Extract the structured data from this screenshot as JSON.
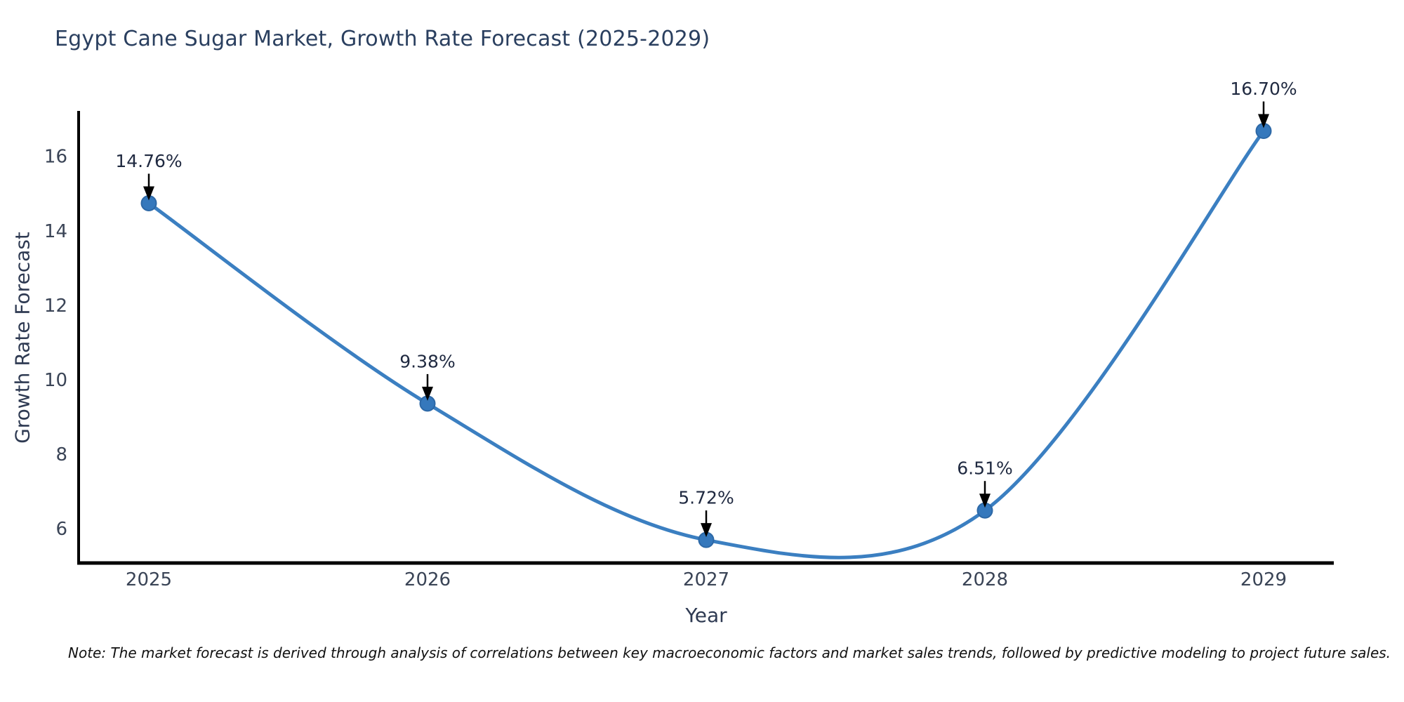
{
  "chart_data": {
    "type": "line",
    "title": "Egypt Cane Sugar Market, Growth Rate Forecast (2025-2029)",
    "xlabel": "Year",
    "ylabel": "Growth Rate Forecast",
    "categories": [
      "2025",
      "2026",
      "2027",
      "2028",
      "2029"
    ],
    "series": [
      {
        "name": "Growth Rate Forecast",
        "values": [
          14.76,
          9.38,
          5.72,
          6.51,
          16.7
        ],
        "point_labels": [
          "14.76%",
          "9.38%",
          "5.72%",
          "6.51%",
          "16.70%"
        ]
      }
    ],
    "yticks": [
      6,
      8,
      10,
      12,
      14,
      16
    ],
    "ylim": [
      5.1,
      17.2
    ],
    "grid": false,
    "legend": "none",
    "smooth": true,
    "annotations_have_arrows": true,
    "style": {
      "line_color": "#3b7fc1",
      "marker_color": "#3578bc",
      "marker_edge_color": "#2d68a6",
      "axis_color": "#000000",
      "tick_label_color": "#3a4456",
      "title_color": "#2a3f5f",
      "annotation_text_color": "#1f2940",
      "arrow_color": "#000000",
      "background": "#ffffff"
    }
  },
  "footnote": "Note: The market forecast is derived through analysis of correlations between key macroeconomic factors and market sales trends, followed by predictive modeling to project future sales."
}
